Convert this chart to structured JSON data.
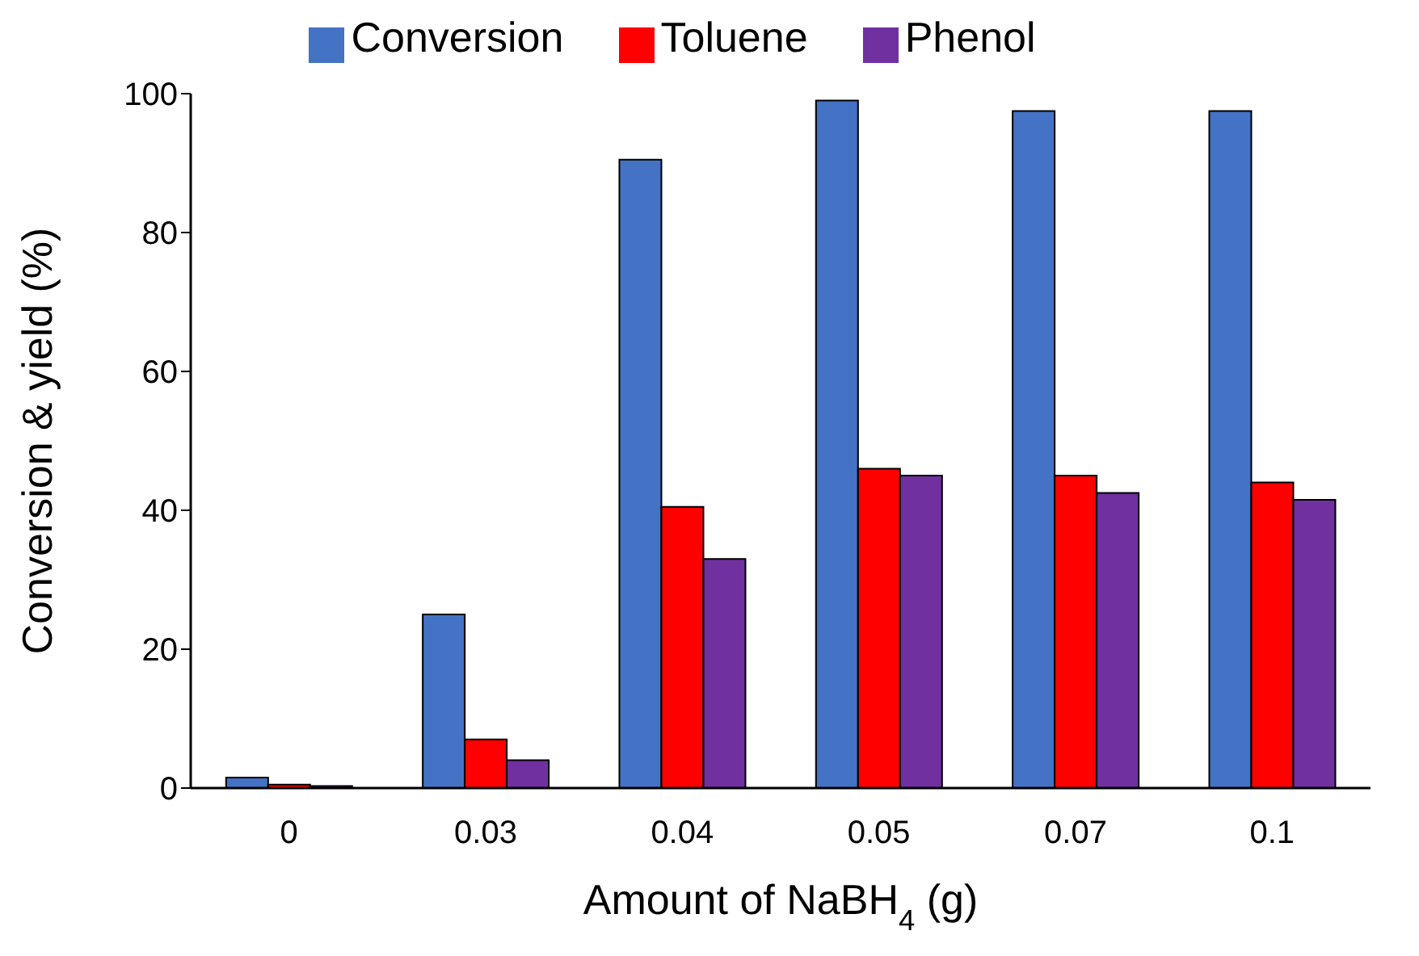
{
  "chart_data": {
    "type": "bar",
    "xlabel": "Amount of NaBH$_{4}$ (g)",
    "ylabel": "Conversion & yield (%)",
    "categories": [
      "0",
      "0.03",
      "0.04",
      "0.05",
      "0.07",
      "0.1"
    ],
    "series": [
      {
        "name": "Conversion",
        "color": "#4472c4",
        "values": [
          1.5,
          25,
          90.5,
          99,
          97.5,
          97.5
        ]
      },
      {
        "name": "Toluene",
        "color": "#ff0000",
        "values": [
          0.5,
          7,
          40.5,
          46,
          45,
          44
        ]
      },
      {
        "name": "Phenol",
        "color": "#7030a0",
        "values": [
          0.3,
          4,
          33,
          45,
          42.5,
          41.5
        ]
      }
    ],
    "ylim": [
      0,
      100
    ],
    "yticks": [
      0,
      20,
      40,
      60,
      80,
      100
    ],
    "grid": false,
    "legend": "top"
  }
}
